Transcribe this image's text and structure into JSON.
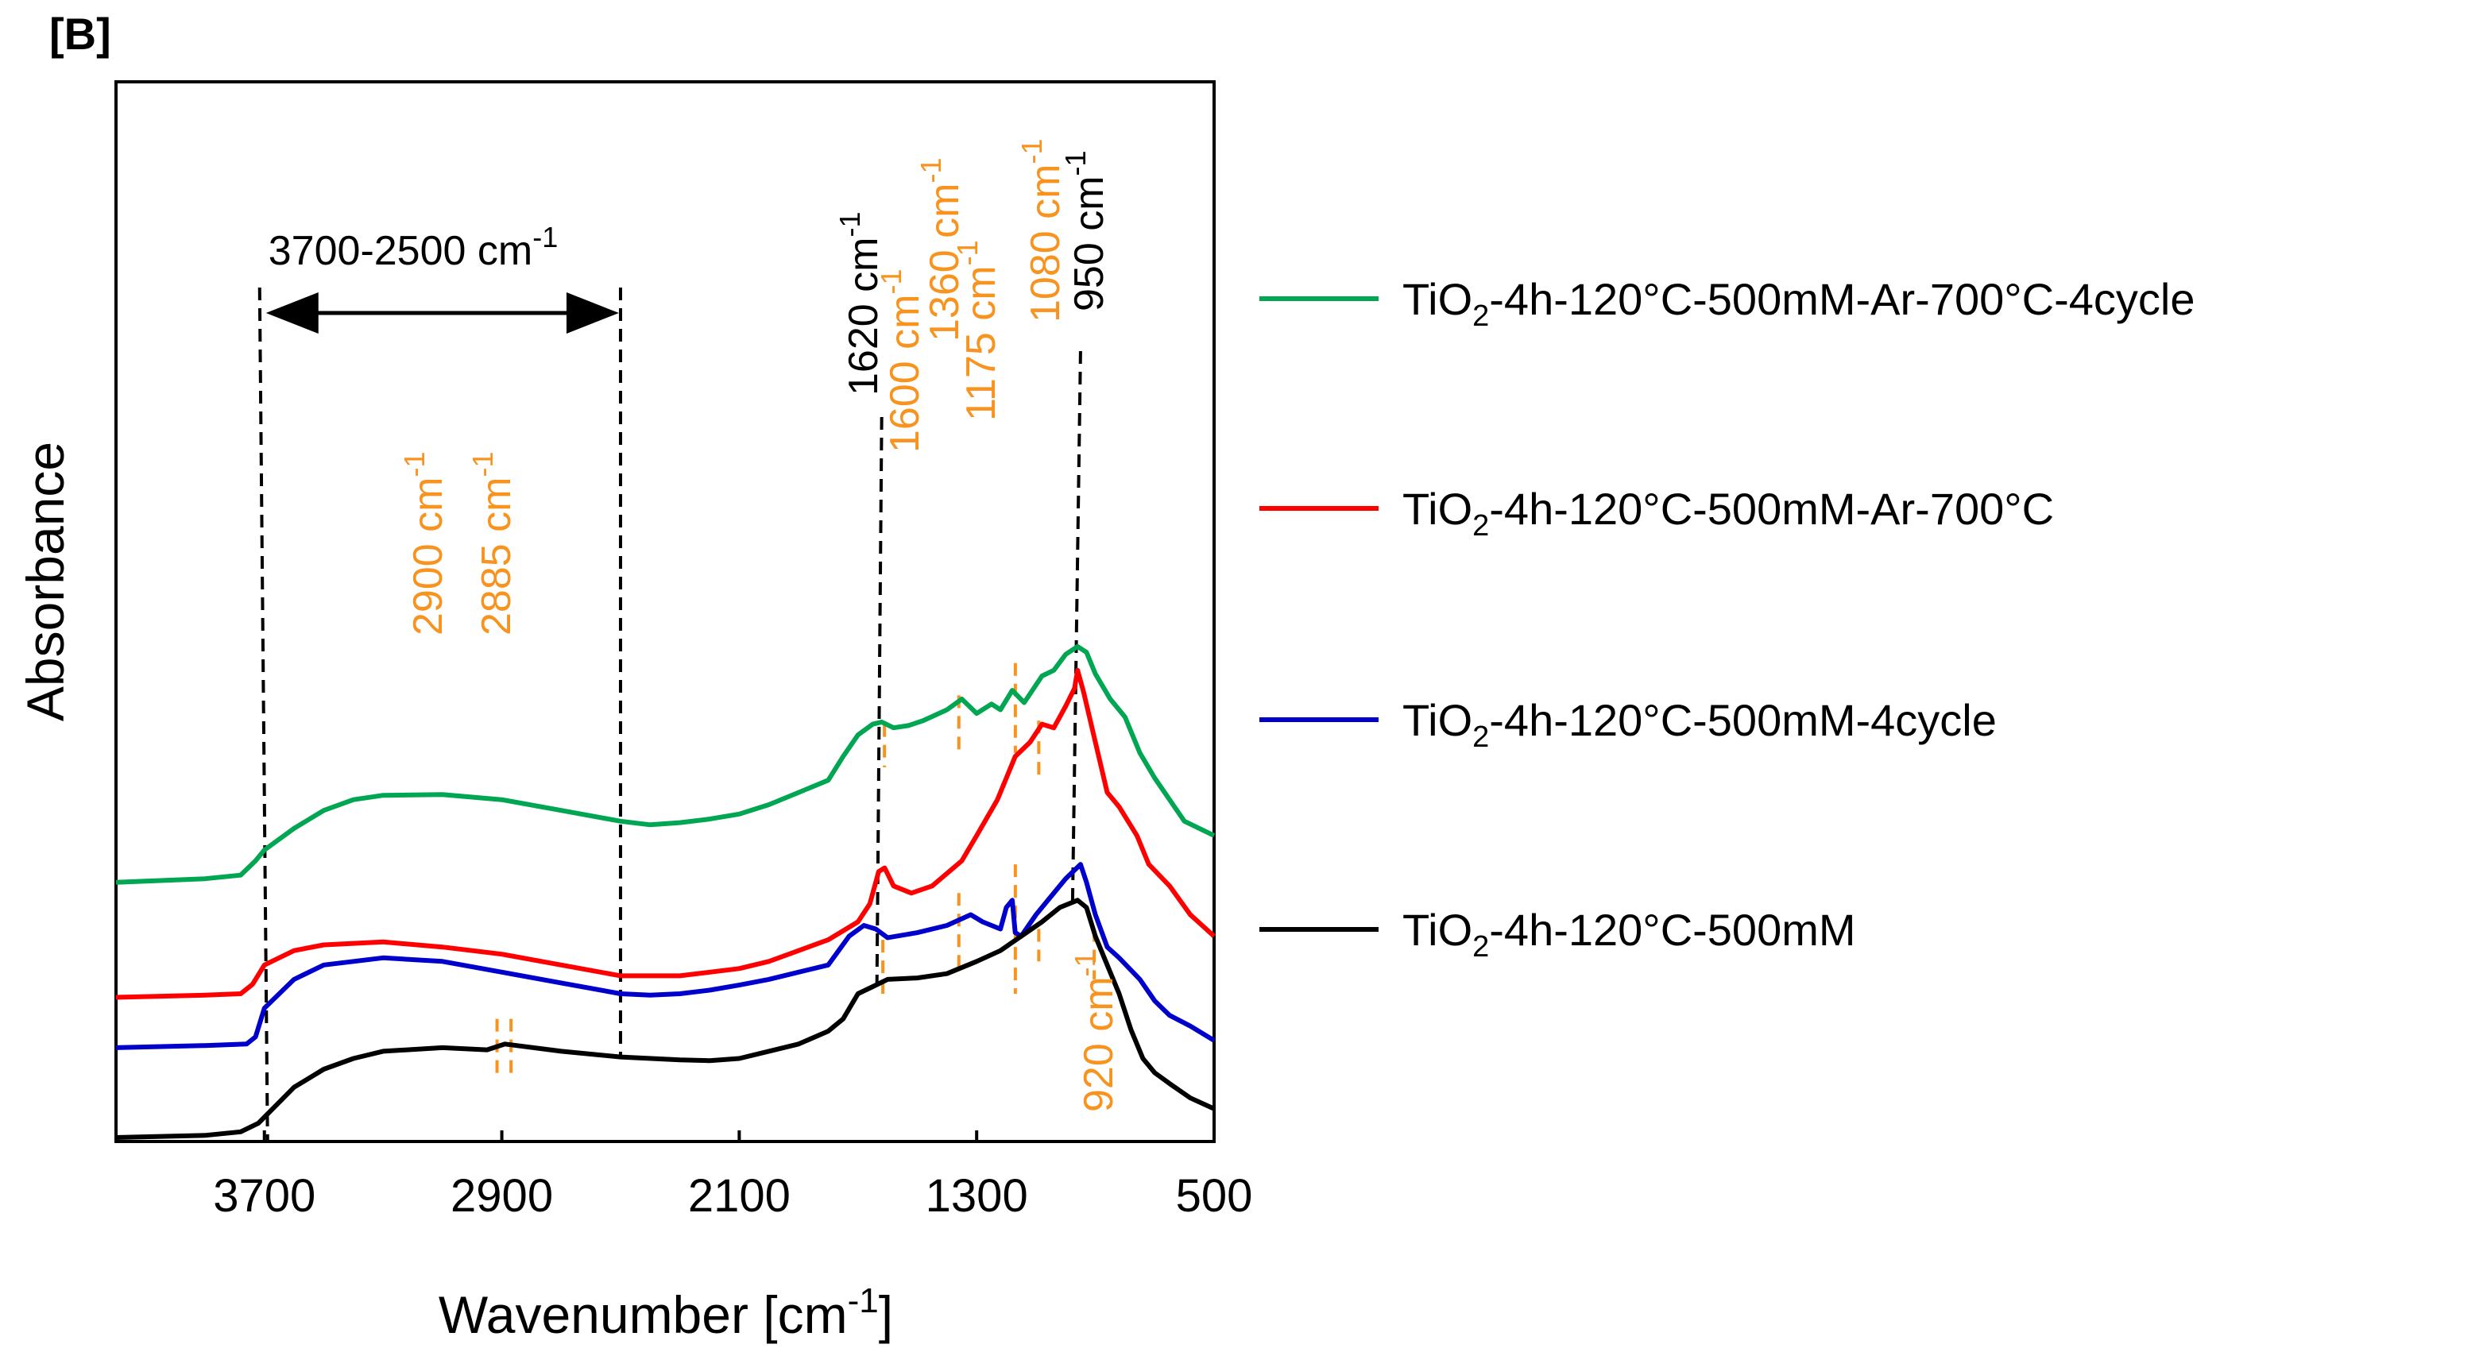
{
  "chart_data": {
    "type": "line",
    "panel_label": "[B]",
    "xlabel": "Wavenumber [cm",
    "xlabel_sup": "-1",
    "xlabel_close": "]",
    "ylabel": "Absorbance",
    "xlim": [
      4200,
      500
    ],
    "ylim": [
      0,
      1
    ],
    "xticks": [
      {
        "value": 3700,
        "label": "3700"
      },
      {
        "value": 2900,
        "label": "2900"
      },
      {
        "value": 2100,
        "label": "2100"
      },
      {
        "value": 1300,
        "label": "1300"
      },
      {
        "value": 500,
        "label": "500"
      }
    ],
    "series": [
      {
        "name": "TiO2-4h-120°C-500mM-Ar-700°C-4cycle",
        "legend_main": "TiO",
        "legend_sub": "2",
        "legend_rest": "-4h-120°C-500mM-Ar-700°C-4cycle",
        "color": "#00a651",
        "points": [
          [
            4200,
            0.355
          ],
          [
            3900,
            0.36
          ],
          [
            3780,
            0.365
          ],
          [
            3730,
            0.385
          ],
          [
            3700,
            0.4
          ],
          [
            3600,
            0.43
          ],
          [
            3500,
            0.455
          ],
          [
            3400,
            0.47
          ],
          [
            3300,
            0.476
          ],
          [
            3100,
            0.477
          ],
          [
            2900,
            0.47
          ],
          [
            2700,
            0.455
          ],
          [
            2500,
            0.44
          ],
          [
            2400,
            0.435
          ],
          [
            2300,
            0.438
          ],
          [
            2200,
            0.443
          ],
          [
            2100,
            0.45
          ],
          [
            2000,
            0.463
          ],
          [
            1900,
            0.48
          ],
          [
            1800,
            0.497
          ],
          [
            1750,
            0.53
          ],
          [
            1700,
            0.56
          ],
          [
            1650,
            0.575
          ],
          [
            1620,
            0.578
          ],
          [
            1580,
            0.57
          ],
          [
            1530,
            0.573
          ],
          [
            1480,
            0.58
          ],
          [
            1400,
            0.595
          ],
          [
            1350,
            0.61
          ],
          [
            1300,
            0.59
          ],
          [
            1250,
            0.603
          ],
          [
            1220,
            0.595
          ],
          [
            1180,
            0.622
          ],
          [
            1140,
            0.605
          ],
          [
            1080,
            0.642
          ],
          [
            1040,
            0.65
          ],
          [
            1000,
            0.672
          ],
          [
            960,
            0.683
          ],
          [
            930,
            0.675
          ],
          [
            900,
            0.645
          ],
          [
            850,
            0.61
          ],
          [
            800,
            0.585
          ],
          [
            750,
            0.535
          ],
          [
            700,
            0.5
          ],
          [
            600,
            0.44
          ],
          [
            500,
            0.42
          ]
        ]
      },
      {
        "name": "TiO2-4h-120°C-500mM-Ar-700°C",
        "legend_main": "TiO",
        "legend_sub": "2",
        "legend_rest": "-4h-120°C-500mM-Ar-700°C",
        "color": "#ff0000",
        "points": [
          [
            4200,
            0.195
          ],
          [
            3900,
            0.198
          ],
          [
            3780,
            0.2
          ],
          [
            3740,
            0.213
          ],
          [
            3700,
            0.24
          ],
          [
            3600,
            0.26
          ],
          [
            3500,
            0.268
          ],
          [
            3300,
            0.272
          ],
          [
            3100,
            0.265
          ],
          [
            2900,
            0.255
          ],
          [
            2700,
            0.24
          ],
          [
            2500,
            0.225
          ],
          [
            2300,
            0.225
          ],
          [
            2100,
            0.235
          ],
          [
            2000,
            0.245
          ],
          [
            1900,
            0.26
          ],
          [
            1800,
            0.275
          ],
          [
            1700,
            0.3
          ],
          [
            1660,
            0.325
          ],
          [
            1630,
            0.37
          ],
          [
            1610,
            0.375
          ],
          [
            1580,
            0.35
          ],
          [
            1520,
            0.34
          ],
          [
            1450,
            0.35
          ],
          [
            1350,
            0.385
          ],
          [
            1300,
            0.42
          ],
          [
            1230,
            0.47
          ],
          [
            1170,
            0.53
          ],
          [
            1120,
            0.55
          ],
          [
            1080,
            0.575
          ],
          [
            1040,
            0.57
          ],
          [
            1000,
            0.6
          ],
          [
            970,
            0.625
          ],
          [
            960,
            0.65
          ],
          [
            940,
            0.62
          ],
          [
            900,
            0.55
          ],
          [
            860,
            0.48
          ],
          [
            820,
            0.46
          ],
          [
            760,
            0.42
          ],
          [
            720,
            0.38
          ],
          [
            650,
            0.35
          ],
          [
            580,
            0.31
          ],
          [
            500,
            0.28
          ]
        ]
      },
      {
        "name": "TiO2-4h-120°C-500mM-4cycle",
        "legend_main": "TiO",
        "legend_sub": "2",
        "legend_rest": "-4h-120°C-500mM-4cycle",
        "color": "#0000cc",
        "points": [
          [
            4200,
            0.125
          ],
          [
            3900,
            0.128
          ],
          [
            3760,
            0.13
          ],
          [
            3730,
            0.14
          ],
          [
            3700,
            0.18
          ],
          [
            3600,
            0.22
          ],
          [
            3500,
            0.24
          ],
          [
            3300,
            0.25
          ],
          [
            3100,
            0.245
          ],
          [
            2900,
            0.23
          ],
          [
            2700,
            0.215
          ],
          [
            2500,
            0.2
          ],
          [
            2400,
            0.198
          ],
          [
            2300,
            0.2
          ],
          [
            2200,
            0.205
          ],
          [
            2100,
            0.212
          ],
          [
            2000,
            0.22
          ],
          [
            1900,
            0.23
          ],
          [
            1800,
            0.24
          ],
          [
            1730,
            0.28
          ],
          [
            1680,
            0.295
          ],
          [
            1640,
            0.29
          ],
          [
            1600,
            0.278
          ],
          [
            1500,
            0.285
          ],
          [
            1400,
            0.295
          ],
          [
            1320,
            0.31
          ],
          [
            1280,
            0.3
          ],
          [
            1220,
            0.29
          ],
          [
            1200,
            0.32
          ],
          [
            1180,
            0.33
          ],
          [
            1170,
            0.285
          ],
          [
            1150,
            0.28
          ],
          [
            1100,
            0.31
          ],
          [
            1060,
            0.33
          ],
          [
            1000,
            0.36
          ],
          [
            950,
            0.38
          ],
          [
            930,
            0.355
          ],
          [
            900,
            0.31
          ],
          [
            860,
            0.265
          ],
          [
            820,
            0.25
          ],
          [
            750,
            0.22
          ],
          [
            700,
            0.19
          ],
          [
            650,
            0.17
          ],
          [
            580,
            0.155
          ],
          [
            500,
            0.135
          ]
        ]
      },
      {
        "name": "TiO2-4h-120°C-500mM",
        "legend_main": "TiO",
        "legend_sub": "2",
        "legend_rest": "-4h-120°C-500mM",
        "color": "#000000",
        "points": [
          [
            4200,
            0.0
          ],
          [
            3900,
            0.003
          ],
          [
            3780,
            0.008
          ],
          [
            3720,
            0.02
          ],
          [
            3660,
            0.045
          ],
          [
            3600,
            0.07
          ],
          [
            3500,
            0.095
          ],
          [
            3400,
            0.11
          ],
          [
            3300,
            0.12
          ],
          [
            3100,
            0.125
          ],
          [
            2950,
            0.122
          ],
          [
            2890,
            0.13
          ],
          [
            2850,
            0.128
          ],
          [
            2700,
            0.12
          ],
          [
            2500,
            0.112
          ],
          [
            2300,
            0.108
          ],
          [
            2200,
            0.107
          ],
          [
            2100,
            0.11
          ],
          [
            2000,
            0.12
          ],
          [
            1900,
            0.13
          ],
          [
            1800,
            0.148
          ],
          [
            1750,
            0.165
          ],
          [
            1700,
            0.2
          ],
          [
            1650,
            0.21
          ],
          [
            1600,
            0.22
          ],
          [
            1500,
            0.222
          ],
          [
            1400,
            0.228
          ],
          [
            1300,
            0.245
          ],
          [
            1220,
            0.26
          ],
          [
            1150,
            0.28
          ],
          [
            1080,
            0.3
          ],
          [
            1020,
            0.32
          ],
          [
            960,
            0.33
          ],
          [
            930,
            0.32
          ],
          [
            900,
            0.28
          ],
          [
            860,
            0.24
          ],
          [
            820,
            0.2
          ],
          [
            780,
            0.15
          ],
          [
            740,
            0.11
          ],
          [
            700,
            0.09
          ],
          [
            650,
            0.075
          ],
          [
            580,
            0.055
          ],
          [
            500,
            0.04
          ]
        ]
      }
    ],
    "range_annotation": {
      "from": 3700,
      "to": 2500,
      "label": "3700-2500 cm",
      "sup": "-1"
    },
    "peak_annotations": [
      {
        "label": "1620 cm",
        "sup": "-1",
        "wavenumber": 1620,
        "color": "#000000"
      },
      {
        "label": "1600 cm",
        "sup": "-1",
        "wavenumber": 1600,
        "color": "#f7931e"
      },
      {
        "label": "1360 cm",
        "sup": "-1",
        "wavenumber": 1360,
        "color": "#f7931e"
      },
      {
        "label": "1175 cm",
        "sup": "-1",
        "wavenumber": 1175,
        "color": "#f7931e"
      },
      {
        "label": "1080 cm",
        "sup": "-1",
        "wavenumber": 1080,
        "color": "#f7931e"
      },
      {
        "label": "950 cm",
        "sup": "-1",
        "wavenumber": 950,
        "color": "#000000"
      },
      {
        "label": "2900 cm",
        "sup": "-1",
        "wavenumber": 2900,
        "color": "#f7931e"
      },
      {
        "label": "2885 cm",
        "sup": "-1",
        "wavenumber": 2885,
        "color": "#f7931e"
      },
      {
        "label": "920 cm",
        "sup": "-1",
        "wavenumber": 920,
        "color": "#f7931e"
      }
    ]
  }
}
